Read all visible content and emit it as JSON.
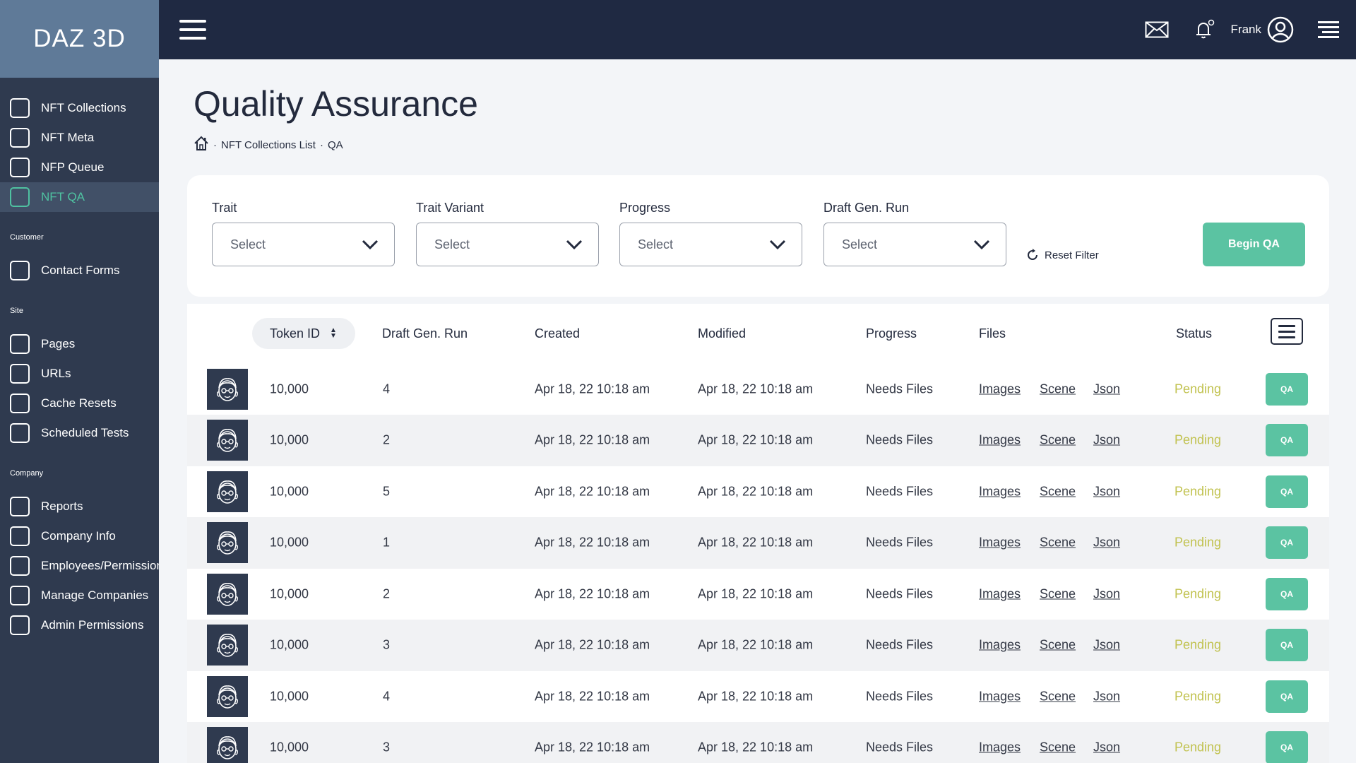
{
  "app": {
    "logo": "DAZ 3D"
  },
  "sidebar": {
    "groups": [
      {
        "label": "",
        "items": [
          {
            "label": "NFT Collections",
            "active": false
          },
          {
            "label": "NFT Meta",
            "active": false
          },
          {
            "label": "NFP Queue",
            "active": false
          },
          {
            "label": "NFT QA",
            "active": true
          }
        ]
      },
      {
        "label": "Customer",
        "items": [
          {
            "label": "Contact Forms",
            "active": false
          }
        ]
      },
      {
        "label": "Site",
        "items": [
          {
            "label": "Pages",
            "active": false
          },
          {
            "label": "URLs",
            "active": false
          },
          {
            "label": "Cache Resets",
            "active": false
          },
          {
            "label": "Scheduled Tests",
            "active": false
          }
        ]
      },
      {
        "label": "Company",
        "items": [
          {
            "label": "Reports",
            "active": false
          },
          {
            "label": "Company Info",
            "active": false
          },
          {
            "label": "Employees/Permissions",
            "active": false
          },
          {
            "label": "Manage Companies",
            "active": false
          },
          {
            "label": "Admin Permissions",
            "active": false
          }
        ]
      }
    ]
  },
  "topbar": {
    "menu_icon": "hamburger-icon",
    "mail_icon": "mail-icon",
    "bell_icon": "bell-icon",
    "user_name": "Frank",
    "avatar_icon": "user-circle-icon",
    "right_menu_icon": "menu-lines-icon"
  },
  "page": {
    "title": "Quality Assurance",
    "breadcrumb": [
      "NFT Collections List",
      "QA"
    ]
  },
  "filters": {
    "items": [
      {
        "label": "Trait",
        "value": "Select"
      },
      {
        "label": "Trait Variant",
        "value": "Select"
      },
      {
        "label": "Progress",
        "value": "Select"
      },
      {
        "label": "Draft Gen. Run",
        "value": "Select"
      }
    ],
    "reset_label": "Reset Filter",
    "begin_label": "Begin QA"
  },
  "table": {
    "headers": {
      "token_id": "Token ID",
      "draft_run": "Draft Gen. Run",
      "created": "Created",
      "modified": "Modified",
      "progress": "Progress",
      "files": "Files",
      "status": "Status"
    },
    "rows": [
      {
        "token_id": "10,000",
        "draft_run": "4",
        "created": "Apr 18, 22 10:18 am",
        "modified": "Apr 18, 22 10:18 am",
        "progress": "Needs Files",
        "files": [
          "Images",
          "Scene",
          "Json"
        ],
        "status": "Pending",
        "action": "QA"
      },
      {
        "token_id": "10,000",
        "draft_run": "2",
        "created": "Apr 18, 22 10:18 am",
        "modified": "Apr 18, 22 10:18 am",
        "progress": "Needs Files",
        "files": [
          "Images",
          "Scene",
          "Json"
        ],
        "status": "Pending",
        "action": "QA"
      },
      {
        "token_id": "10,000",
        "draft_run": "5",
        "created": "Apr 18, 22 10:18 am",
        "modified": "Apr 18, 22 10:18 am",
        "progress": "Needs Files",
        "files": [
          "Images",
          "Scene",
          "Json"
        ],
        "status": "Pending",
        "action": "QA"
      },
      {
        "token_id": "10,000",
        "draft_run": "1",
        "created": "Apr 18, 22 10:18 am",
        "modified": "Apr 18, 22 10:18 am",
        "progress": "Needs Files",
        "files": [
          "Images",
          "Scene",
          "Json"
        ],
        "status": "Pending",
        "action": "QA"
      },
      {
        "token_id": "10,000",
        "draft_run": "2",
        "created": "Apr 18, 22 10:18 am",
        "modified": "Apr 18, 22 10:18 am",
        "progress": "Needs Files",
        "files": [
          "Images",
          "Scene",
          "Json"
        ],
        "status": "Pending",
        "action": "QA"
      },
      {
        "token_id": "10,000",
        "draft_run": "3",
        "created": "Apr 18, 22 10:18 am",
        "modified": "Apr 18, 22 10:18 am",
        "progress": "Needs Files",
        "files": [
          "Images",
          "Scene",
          "Json"
        ],
        "status": "Pending",
        "action": "QA"
      },
      {
        "token_id": "10,000",
        "draft_run": "4",
        "created": "Apr 18, 22 10:18 am",
        "modified": "Apr 18, 22 10:18 am",
        "progress": "Needs Files",
        "files": [
          "Images",
          "Scene",
          "Json"
        ],
        "status": "Pending",
        "action": "QA"
      },
      {
        "token_id": "10,000",
        "draft_run": "3",
        "created": "Apr 18, 22 10:18 am",
        "modified": "Apr 18, 22 10:18 am",
        "progress": "Needs Files",
        "files": [
          "Images",
          "Scene",
          "Json"
        ],
        "status": "Pending",
        "action": "QA"
      }
    ]
  },
  "colors": {
    "sidebar_bg": "#2f3a4f",
    "topbar_bg": "#1f2942",
    "accent": "#5bc3a2",
    "status_pending": "#c1c24f"
  }
}
